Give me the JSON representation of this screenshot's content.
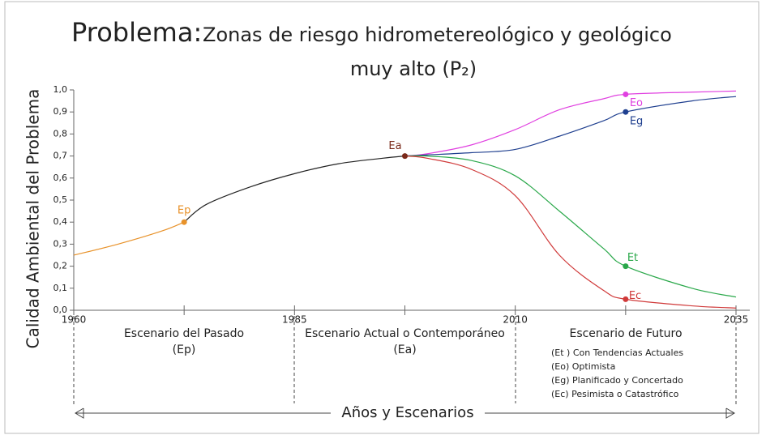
{
  "chart_data": {
    "type": "line",
    "title_prefix": "Problema:",
    "title_line1": "Zonas de riesgo hidrometereológico y geológico",
    "title_line2": "muy alto  (P₂)",
    "y_label": "Calidad Ambiental del Problema",
    "x_label": "Años y Escenarios",
    "xlim": [
      1960,
      2035
    ],
    "ylim": [
      0,
      1
    ],
    "xticks": [
      1960,
      1985,
      2010,
      2035
    ],
    "xticks_minor": [
      1972.5,
      1997.5,
      2022.5
    ],
    "yticks": [
      {
        "value": 0,
        "label": "0,0"
      },
      {
        "value": 0.1,
        "label": "0,1"
      },
      {
        "value": 0.2,
        "label": "0,2"
      },
      {
        "value": 0.3,
        "label": "0,3"
      },
      {
        "value": 0.4,
        "label": "0,4"
      },
      {
        "value": 0.5,
        "label": "0,5"
      },
      {
        "value": 0.6,
        "label": "0,6"
      },
      {
        "value": 0.7,
        "label": "0,7"
      },
      {
        "value": 0.8,
        "label": "0,8"
      },
      {
        "value": 0.9,
        "label": "0,9"
      },
      {
        "value": 1,
        "label": "1,0"
      }
    ],
    "series": [
      {
        "color": "#e8922a",
        "x": [
          1960,
          1965,
          1970,
          1972.5
        ],
        "y": [
          0.25,
          0.3,
          0.36,
          0.4
        ]
      },
      {
        "color": "#222222",
        "x": [
          1972.5,
          1975,
          1980,
          1985,
          1990,
          1995,
          1997.5
        ],
        "y": [
          0.4,
          0.48,
          0.56,
          0.62,
          0.665,
          0.69,
          0.7
        ]
      },
      {
        "color": "#e040e0",
        "x": [
          1997.5,
          2000,
          2005,
          2010,
          2015,
          2020,
          2022.5,
          2030,
          2035
        ],
        "y": [
          0.7,
          0.71,
          0.75,
          0.82,
          0.91,
          0.96,
          0.98,
          0.99,
          0.995
        ]
      },
      {
        "color": "#1f3f8f",
        "x": [
          1997.5,
          2000,
          2005,
          2010,
          2015,
          2020,
          2022.5,
          2030,
          2035
        ],
        "y": [
          0.7,
          0.705,
          0.715,
          0.73,
          0.79,
          0.86,
          0.9,
          0.95,
          0.97
        ]
      },
      {
        "color": "#2aa84a",
        "x": [
          1997.5,
          2000,
          2005,
          2010,
          2015,
          2020,
          2022.5,
          2030,
          2035
        ],
        "y": [
          0.7,
          0.7,
          0.68,
          0.61,
          0.45,
          0.28,
          0.2,
          0.1,
          0.06
        ]
      },
      {
        "color": "#d03a3a",
        "x": [
          1997.5,
          2000,
          2005,
          2010,
          2015,
          2020,
          2022.5,
          2030,
          2035
        ],
        "y": [
          0.7,
          0.69,
          0.64,
          0.52,
          0.25,
          0.09,
          0.05,
          0.02,
          0.01
        ]
      }
    ],
    "points": [
      {
        "label": "Ep",
        "x": 1972.5,
        "y": 0.4,
        "color": "#e8922a"
      },
      {
        "label": "Ea",
        "x": 1997.5,
        "y": 0.7,
        "color": "#7a2a1a"
      },
      {
        "label": "Eo",
        "x": 2022.5,
        "y": 0.98,
        "color": "#e040e0"
      },
      {
        "label": "Eg",
        "x": 2022.5,
        "y": 0.9,
        "color": "#1f3f8f"
      },
      {
        "label": "Et",
        "x": 2022.5,
        "y": 0.2,
        "color": "#2aa84a"
      },
      {
        "label": "Ec",
        "x": 2022.5,
        "y": 0.05,
        "color": "#d03a3a"
      }
    ],
    "scenarios": [
      {
        "title": "Escenario del Pasado",
        "code": "(Ep)"
      },
      {
        "title": "Escenario Actual o Contemporáneo",
        "code": "(Ea)"
      },
      {
        "title": "Escenario de Futuro",
        "items": [
          "(Et ) Con Tendencias Actuales",
          "(Eo) Optimista",
          "(Eg) Planificado y Concertado",
          "(Ec) Pesimista o Catastrófico"
        ]
      }
    ]
  }
}
